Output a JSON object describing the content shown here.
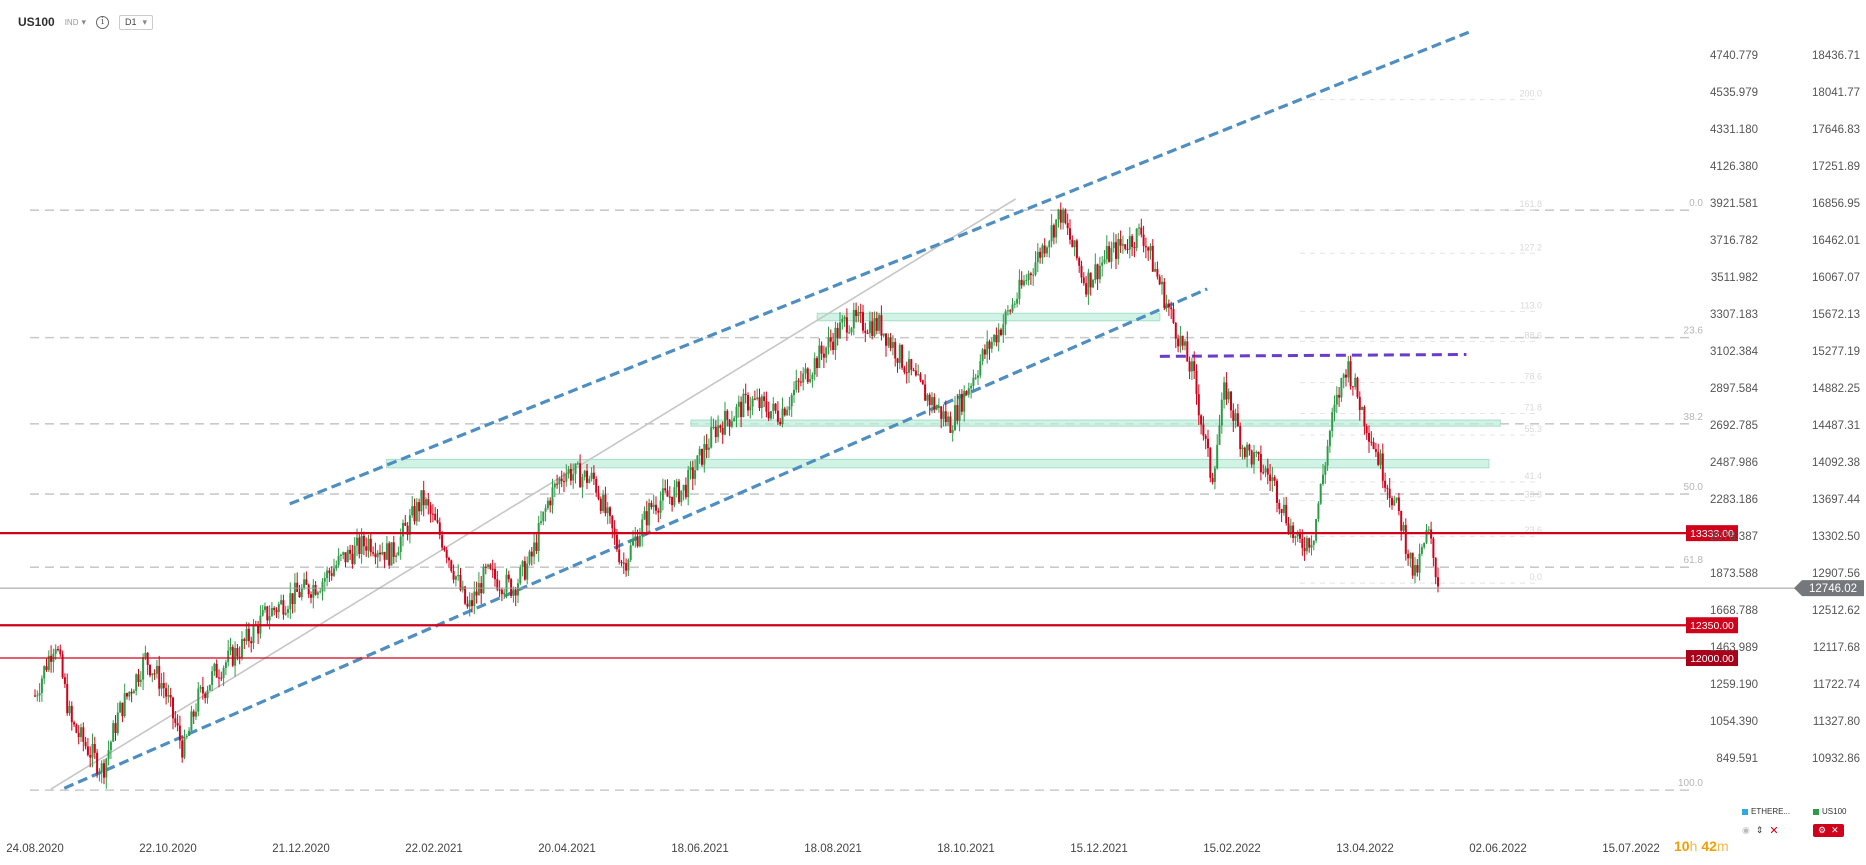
{
  "header": {
    "symbol": "US100",
    "symbol_type": "IND",
    "timeframe": "D1",
    "info_icon": "info-icon",
    "caret_icon": "chevron-down-icon"
  },
  "colors": {
    "up": "#2e9b47",
    "down": "#d0021b",
    "channel": "#4f8ec0",
    "zone": "#bfeedb",
    "zone_border": "#a6dfc7",
    "hline_red": "#d0021b",
    "resistance_purple": "#6a3cc9",
    "grid": "#c9c9c9",
    "current_tag": "#74787c",
    "label_red": "#d0021b",
    "label_darkred": "#a8001a",
    "countdown": "#f0a000"
  },
  "chart_data": {
    "type": "candlestick",
    "title": "",
    "xlabel": "",
    "ylabel": "",
    "x_ticks": [
      "24.08.2020",
      "22.10.2020",
      "21.12.2020",
      "22.02.2021",
      "20.04.2021",
      "18.06.2021",
      "18.08.2021",
      "18.10.2021",
      "15.12.2021",
      "15.02.2022",
      "13.04.2022",
      "02.06.2022",
      "15.07.2022"
    ],
    "y_ticks_price": [
      "18436.71",
      "18041.77",
      "17646.83",
      "17251.89",
      "16856.95",
      "16462.01",
      "16067.07",
      "15672.13",
      "15277.19",
      "14882.25",
      "14487.31",
      "14092.38",
      "13697.44",
      "13302.50",
      "12907.56",
      "12512.62",
      "12117.68",
      "11722.74",
      "11327.80",
      "10932.86"
    ],
    "y_ticks_points": [
      "4740.779",
      "4535.979",
      "4331.180",
      "4126.380",
      "3921.581",
      "3716.782",
      "3511.982",
      "3307.183",
      "3102.384",
      "2897.584",
      "2692.785",
      "2487.986",
      "2283.186",
      "2078.387",
      "1873.588",
      "1668.788",
      "1463.989",
      "1259.190",
      "1054.390",
      "849.591"
    ],
    "current_price": "12746.02",
    "horizontal_lines": [
      {
        "price": 13333.0,
        "label": "13333.00"
      },
      {
        "price": 12350.0,
        "label": "12350.00"
      },
      {
        "price": 12000.0,
        "label": "12000.00"
      }
    ],
    "fib_levels": [
      {
        "label": "0.0",
        "price": 16780
      },
      {
        "label": "23.6",
        "price": 15420
      },
      {
        "label": "38.2",
        "price": 14500
      },
      {
        "label": "50.0",
        "price": 13750
      },
      {
        "label": "61.8",
        "price": 12970
      },
      {
        "label": "100.0",
        "price": 10590
      }
    ],
    "fib_ext_labels": [
      "200.0",
      "161.8",
      "127.2",
      "113.0",
      "88.6",
      "78.6",
      "71.8",
      "55.3",
      "41.4",
      "33.3",
      "23.6",
      "0.0"
    ],
    "zones": [
      {
        "date_start": "2021-01-27",
        "date_end": "2022-05-31",
        "price_low": 14030,
        "price_high": 14120,
        "label": ""
      },
      {
        "date_start": "2021-06-11",
        "date_end": "2022-06-05",
        "price_low": 14475,
        "price_high": 14540,
        "label": ""
      },
      {
        "date_start": "2021-08-06",
        "date_end": "2022-01-05",
        "price_low": 15600,
        "price_high": 15680,
        "label": ""
      }
    ],
    "channel_upper": {
      "start": [
        "2020-12-15",
        13645
      ],
      "end": [
        "2022-05-22",
        18680
      ]
    },
    "channel_lower": {
      "start": [
        "2020-09-06",
        10610
      ],
      "end": [
        "2022-01-26",
        15940
      ]
    },
    "resistance": {
      "start": [
        "2022-01-05",
        15220
      ],
      "end": [
        "2022-05-21",
        15240
      ]
    },
    "trend_gray": {
      "start": [
        "2020-08-31",
        10600
      ],
      "end": [
        "2021-11-02",
        16900
      ]
    },
    "candles": [
      {
        "d": "2020-08-24",
        "c": 11600
      },
      {
        "d": "2020-09-02",
        "c": 12200
      },
      {
        "d": "2020-09-09",
        "c": 11300
      },
      {
        "d": "2020-09-16",
        "c": 11050
      },
      {
        "d": "2020-09-23",
        "c": 10800
      },
      {
        "d": "2020-09-30",
        "c": 11400
      },
      {
        "d": "2020-10-12",
        "c": 12000
      },
      {
        "d": "2020-10-20",
        "c": 11700
      },
      {
        "d": "2020-10-29",
        "c": 11000
      },
      {
        "d": "2020-11-04",
        "c": 11550
      },
      {
        "d": "2020-11-12",
        "c": 11850
      },
      {
        "d": "2020-11-23",
        "c": 12100
      },
      {
        "d": "2020-12-04",
        "c": 12450
      },
      {
        "d": "2020-12-16",
        "c": 12660
      },
      {
        "d": "2020-12-28",
        "c": 12800
      },
      {
        "d": "2021-01-07",
        "c": 13050
      },
      {
        "d": "2021-01-19",
        "c": 13250
      },
      {
        "d": "2021-01-29",
        "c": 13100
      },
      {
        "d": "2021-02-12",
        "c": 13700
      },
      {
        "d": "2021-02-22",
        "c": 13200
      },
      {
        "d": "2021-03-04",
        "c": 12500
      },
      {
        "d": "2021-03-12",
        "c": 12900
      },
      {
        "d": "2021-03-24",
        "c": 12750
      },
      {
        "d": "2021-04-01",
        "c": 13050
      },
      {
        "d": "2021-04-09",
        "c": 13700
      },
      {
        "d": "2021-04-16",
        "c": 14000
      },
      {
        "d": "2021-04-29",
        "c": 13900
      },
      {
        "d": "2021-05-12",
        "c": 13000
      },
      {
        "d": "2021-05-25",
        "c": 13650
      },
      {
        "d": "2021-06-08",
        "c": 13800
      },
      {
        "d": "2021-06-22",
        "c": 14450
      },
      {
        "d": "2021-07-07",
        "c": 14750
      },
      {
        "d": "2021-07-20",
        "c": 14600
      },
      {
        "d": "2021-08-03",
        "c": 15100
      },
      {
        "d": "2021-08-19",
        "c": 15600
      },
      {
        "d": "2021-09-03",
        "c": 15550
      },
      {
        "d": "2021-09-20",
        "c": 14900
      },
      {
        "d": "2021-10-04",
        "c": 14500
      },
      {
        "d": "2021-10-18",
        "c": 15200
      },
      {
        "d": "2021-10-28",
        "c": 15600
      },
      {
        "d": "2021-11-10",
        "c": 16200
      },
      {
        "d": "2021-11-22",
        "c": 16750
      },
      {
        "d": "2021-12-03",
        "c": 16000
      },
      {
        "d": "2021-12-13",
        "c": 16300
      },
      {
        "d": "2021-12-28",
        "c": 16550
      },
      {
        "d": "2022-01-10",
        "c": 15650
      },
      {
        "d": "2022-01-20",
        "c": 15000
      },
      {
        "d": "2022-01-28",
        "c": 13900
      },
      {
        "d": "2022-02-03",
        "c": 14900
      },
      {
        "d": "2022-02-11",
        "c": 14250
      },
      {
        "d": "2022-02-24",
        "c": 13900
      },
      {
        "d": "2022-03-07",
        "c": 13200
      },
      {
        "d": "2022-03-14",
        "c": 13300
      },
      {
        "d": "2022-03-22",
        "c": 14500
      },
      {
        "d": "2022-03-29",
        "c": 15150
      },
      {
        "d": "2022-04-06",
        "c": 14550
      },
      {
        "d": "2022-04-14",
        "c": 14000
      },
      {
        "d": "2022-04-22",
        "c": 13450
      },
      {
        "d": "2022-04-28",
        "c": 12850
      },
      {
        "d": "2022-05-04",
        "c": 13350
      },
      {
        "d": "2022-05-09",
        "c": 12746
      }
    ]
  },
  "countdown": {
    "hours": "10",
    "hours_unit": "h",
    "minutes": "42",
    "minutes_unit": "m"
  },
  "mini_panels": {
    "left_label": "ETHERE...",
    "right_label": "US100",
    "left_color": "#2fa9df",
    "right_color": "#2e9b47"
  }
}
